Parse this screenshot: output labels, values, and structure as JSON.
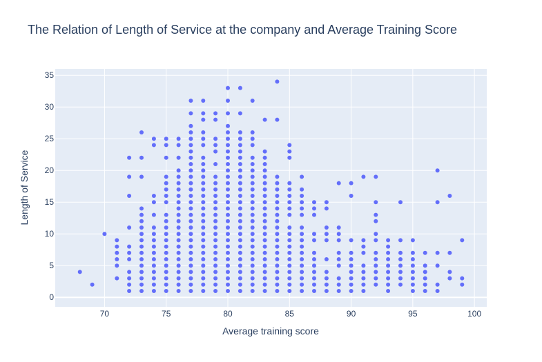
{
  "chart_data": {
    "type": "scatter",
    "title": "The Relation of Length of Service at the company and Average Training Score",
    "xlabel": "Average training score",
    "ylabel": "Length of Service",
    "xlim": [
      66,
      101
    ],
    "ylim": [
      -1.5,
      36
    ],
    "x_ticks": [
      70,
      75,
      80,
      85,
      90,
      95,
      100
    ],
    "y_ticks": [
      0,
      5,
      10,
      15,
      20,
      25,
      30,
      35
    ],
    "grid": true,
    "legend": "none",
    "colors": {
      "marker": "#636efa",
      "plot_bg": "#e5ecf6",
      "grid": "#ffffff",
      "text": "#2a3f5f"
    },
    "columns": [
      {
        "x": 68,
        "y": [
          4
        ]
      },
      {
        "x": 69,
        "y": [
          2
        ]
      },
      {
        "x": 70,
        "y": [
          10
        ]
      },
      {
        "x": 71,
        "y": [
          3,
          5,
          6,
          7,
          8,
          9
        ]
      },
      {
        "x": 72,
        "y": [
          1,
          2,
          3,
          4,
          6,
          7,
          8,
          11,
          16,
          19,
          22
        ]
      },
      {
        "x": 73,
        "y": [
          1,
          2,
          3,
          4,
          5,
          6,
          7,
          8,
          9,
          10,
          11,
          12,
          13,
          14,
          19,
          22,
          26
        ]
      },
      {
        "x": 74,
        "y": [
          1,
          2,
          3,
          4,
          5,
          6,
          7,
          8,
          9,
          10,
          11,
          13,
          15,
          16,
          24,
          25
        ]
      },
      {
        "x": 75,
        "y": [
          1,
          2,
          3,
          4,
          5,
          6,
          7,
          8,
          9,
          10,
          11,
          12,
          13,
          15,
          16,
          17,
          18,
          19,
          22,
          24,
          25
        ]
      },
      {
        "x": 76,
        "y": [
          1,
          2,
          3,
          4,
          5,
          6,
          7,
          8,
          9,
          10,
          11,
          12,
          13,
          14,
          15,
          16,
          17,
          18,
          19,
          20,
          22,
          24,
          25
        ]
      },
      {
        "x": 77,
        "y": [
          1,
          2,
          3,
          4,
          5,
          6,
          7,
          8,
          9,
          10,
          11,
          12,
          13,
          14,
          15,
          16,
          17,
          18,
          19,
          20,
          21,
          22,
          23,
          24,
          25,
          26,
          27,
          29,
          31
        ]
      },
      {
        "x": 78,
        "y": [
          1,
          2,
          3,
          4,
          5,
          6,
          7,
          8,
          9,
          10,
          11,
          12,
          13,
          14,
          15,
          16,
          17,
          18,
          19,
          20,
          21,
          22,
          24,
          25,
          26,
          28,
          29,
          31
        ]
      },
      {
        "x": 79,
        "y": [
          1,
          2,
          3,
          4,
          5,
          6,
          7,
          8,
          9,
          10,
          11,
          12,
          13,
          14,
          15,
          16,
          17,
          18,
          19,
          21,
          23,
          24,
          25,
          28,
          29
        ]
      },
      {
        "x": 80,
        "y": [
          1,
          2,
          3,
          4,
          5,
          6,
          7,
          8,
          9,
          10,
          11,
          12,
          13,
          14,
          15,
          16,
          17,
          18,
          19,
          20,
          21,
          22,
          23,
          24,
          25,
          26,
          27,
          29,
          31,
          33
        ]
      },
      {
        "x": 81,
        "y": [
          1,
          2,
          3,
          4,
          5,
          6,
          7,
          8,
          9,
          10,
          11,
          12,
          13,
          14,
          15,
          16,
          17,
          18,
          19,
          20,
          21,
          22,
          23,
          24,
          25,
          26,
          29,
          33
        ]
      },
      {
        "x": 82,
        "y": [
          1,
          2,
          3,
          4,
          5,
          6,
          7,
          8,
          9,
          10,
          11,
          12,
          13,
          14,
          15,
          16,
          17,
          18,
          19,
          20,
          21,
          22,
          24,
          25,
          26,
          31
        ]
      },
      {
        "x": 83,
        "y": [
          1,
          2,
          3,
          4,
          5,
          6,
          7,
          8,
          9,
          10,
          11,
          12,
          13,
          14,
          15,
          16,
          17,
          18,
          19,
          20,
          21,
          22,
          23,
          28
        ]
      },
      {
        "x": 84,
        "y": [
          1,
          2,
          3,
          4,
          5,
          6,
          7,
          8,
          9,
          10,
          11,
          12,
          13,
          14,
          15,
          16,
          17,
          18,
          19,
          28,
          34
        ]
      },
      {
        "x": 85,
        "y": [
          1,
          2,
          3,
          4,
          5,
          6,
          7,
          8,
          9,
          10,
          11,
          13,
          14,
          15,
          16,
          17,
          18,
          22,
          23,
          24
        ]
      },
      {
        "x": 86,
        "y": [
          1,
          2,
          3,
          4,
          5,
          6,
          7,
          8,
          9,
          10,
          11,
          13,
          14,
          15,
          16,
          17,
          19
        ]
      },
      {
        "x": 87,
        "y": [
          1,
          2,
          3,
          4,
          5,
          6,
          7,
          9,
          10,
          13,
          14,
          15
        ]
      },
      {
        "x": 88,
        "y": [
          1,
          2,
          3,
          4,
          6,
          9,
          10,
          11,
          14,
          15
        ]
      },
      {
        "x": 89,
        "y": [
          1,
          2,
          3,
          5,
          6,
          7,
          9,
          10,
          11,
          18
        ]
      },
      {
        "x": 90,
        "y": [
          1,
          2,
          3,
          4,
          5,
          6,
          7,
          9,
          16,
          18
        ]
      },
      {
        "x": 91,
        "y": [
          1,
          2,
          3,
          4,
          5,
          7,
          8,
          9,
          19
        ]
      },
      {
        "x": 92,
        "y": [
          2,
          3,
          4,
          5,
          6,
          7,
          9,
          10,
          12,
          13,
          15,
          19
        ]
      },
      {
        "x": 93,
        "y": [
          1,
          2,
          3,
          4,
          5,
          6,
          7,
          8,
          9
        ]
      },
      {
        "x": 94,
        "y": [
          2,
          3,
          4,
          5,
          6,
          7,
          9,
          15
        ]
      },
      {
        "x": 95,
        "y": [
          1,
          2,
          3,
          4,
          5,
          6,
          7,
          9
        ]
      },
      {
        "x": 96,
        "y": [
          1,
          2,
          3,
          4,
          5,
          7
        ]
      },
      {
        "x": 97,
        "y": [
          1,
          2,
          5,
          7,
          15,
          20
        ]
      },
      {
        "x": 98,
        "y": [
          3,
          4,
          7,
          16
        ]
      },
      {
        "x": 99,
        "y": [
          2,
          3,
          9
        ]
      }
    ]
  }
}
